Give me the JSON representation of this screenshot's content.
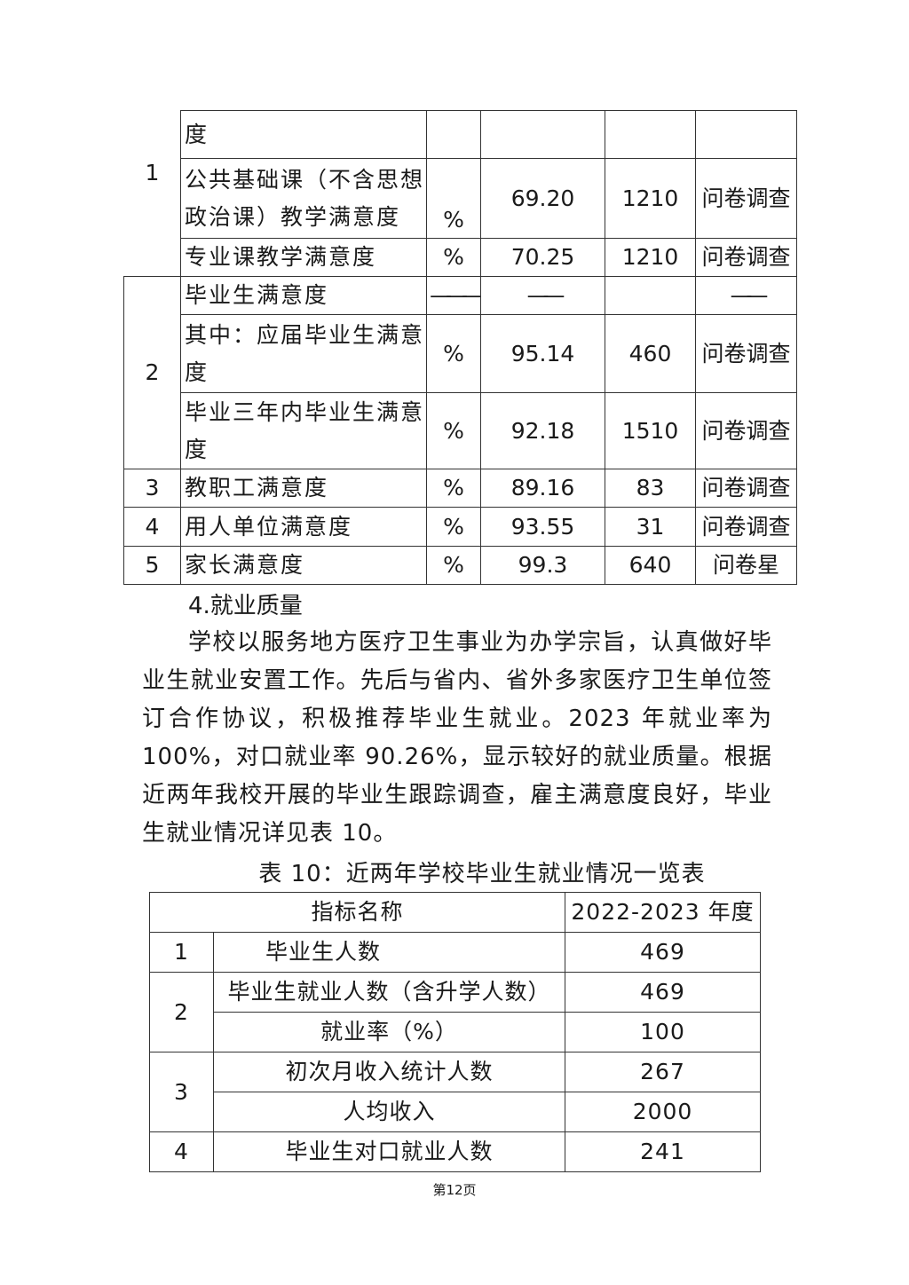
{
  "table_satisfaction": {
    "rows": [
      {
        "no": "1",
        "name_part1": "度",
        "name_part2": "公共基础课（不含思想政治课）教学满意度",
        "name_part3": "专业课教学满意度",
        "unit2": "%",
        "value2": "69.20",
        "count2": "1210",
        "method2": "问卷调查",
        "unit3": "%",
        "value3": "70.25",
        "count3": "1210",
        "method3": "问卷调查"
      },
      {
        "no": "2",
        "title": "毕业生满意度",
        "dash": "———",
        "dash2": "——",
        "dash3": "——",
        "sub1": {
          "name": "其中：应届毕业生满意度",
          "unit": "%",
          "value": "95.14",
          "count": "460",
          "method": "问卷调查"
        },
        "sub2": {
          "name": "毕业三年内毕业生满意度",
          "unit": "%",
          "value": "92.18",
          "count": "1510",
          "method": "问卷调查"
        }
      },
      {
        "no": "3",
        "name": "教职工满意度",
        "unit": "%",
        "value": "89.16",
        "count": "83",
        "method": "问卷调查"
      },
      {
        "no": "4",
        "name": "用人单位满意度",
        "unit": "%",
        "value": "93.55",
        "count": "31",
        "method": "问卷调查"
      },
      {
        "no": "5",
        "name": "家长满意度",
        "unit": "%",
        "value": "99.3",
        "count": "640",
        "method": "问卷星"
      }
    ]
  },
  "section": {
    "heading": "4.就业质量",
    "paragraph": "学校以服务地方医疗卫生事业为办学宗旨，认真做好毕业生就业安置工作。先后与省内、省外多家医疗卫生单位签订合作协议，积极推荐毕业生就业。2023 年就业率为 100%，对口就业率 90.26%，显示较好的就业质量。根据近两年我校开展的毕业生跟踪调查，雇主满意度良好，毕业生就业情况详见表 10。"
  },
  "table10": {
    "caption": "表 10：近两年学校毕业生就业情况一览表",
    "header": {
      "name": "指标名称",
      "year": "2022-2023 年度"
    },
    "rows": [
      {
        "no": "1",
        "name": "毕业生人数",
        "value": "469"
      },
      {
        "no": "2",
        "name": "毕业生就业人数（含升学人数）",
        "value": "469"
      },
      {
        "no": "",
        "name": "就业率（%）",
        "value": "100"
      },
      {
        "no": "3",
        "name": "初次月收入统计人数",
        "value": "267"
      },
      {
        "no": "",
        "name": "人均收入",
        "value": "2000"
      },
      {
        "no": "4",
        "name": "毕业生对口就业人数",
        "value": "241"
      }
    ]
  },
  "page_number": "第12页"
}
